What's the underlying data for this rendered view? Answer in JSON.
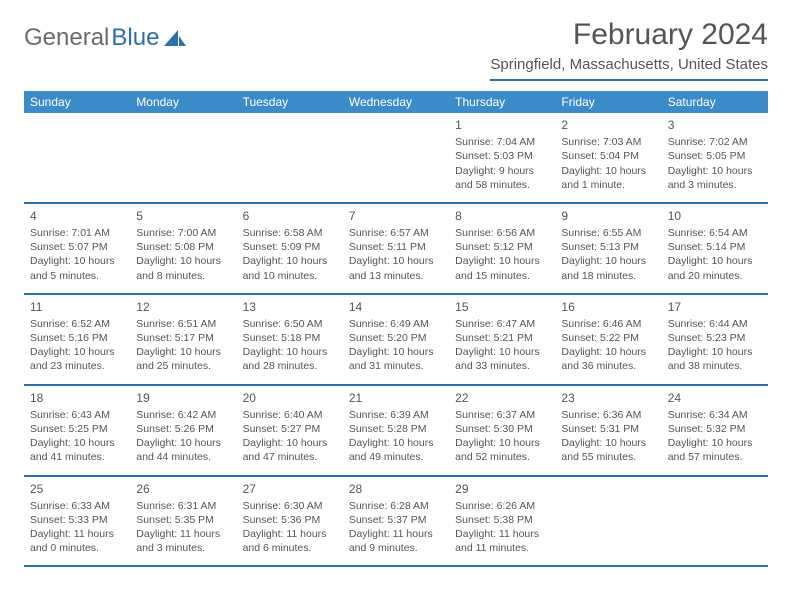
{
  "brand": {
    "part1": "General",
    "part2": "Blue"
  },
  "title": "February 2024",
  "location": "Springfield, Massachusetts, United States",
  "colors": {
    "header_bar": "#3b8bc9",
    "rule": "#2f6fa8",
    "text": "#555555",
    "logo_gray": "#6b6b6b"
  },
  "weekdays": [
    "Sunday",
    "Monday",
    "Tuesday",
    "Wednesday",
    "Thursday",
    "Friday",
    "Saturday"
  ],
  "weeks": [
    [
      null,
      null,
      null,
      null,
      {
        "n": "1",
        "sr": "Sunrise: 7:04 AM",
        "ss": "Sunset: 5:03 PM",
        "dl": "Daylight: 9 hours and 58 minutes."
      },
      {
        "n": "2",
        "sr": "Sunrise: 7:03 AM",
        "ss": "Sunset: 5:04 PM",
        "dl": "Daylight: 10 hours and 1 minute."
      },
      {
        "n": "3",
        "sr": "Sunrise: 7:02 AM",
        "ss": "Sunset: 5:05 PM",
        "dl": "Daylight: 10 hours and 3 minutes."
      }
    ],
    [
      {
        "n": "4",
        "sr": "Sunrise: 7:01 AM",
        "ss": "Sunset: 5:07 PM",
        "dl": "Daylight: 10 hours and 5 minutes."
      },
      {
        "n": "5",
        "sr": "Sunrise: 7:00 AM",
        "ss": "Sunset: 5:08 PM",
        "dl": "Daylight: 10 hours and 8 minutes."
      },
      {
        "n": "6",
        "sr": "Sunrise: 6:58 AM",
        "ss": "Sunset: 5:09 PM",
        "dl": "Daylight: 10 hours and 10 minutes."
      },
      {
        "n": "7",
        "sr": "Sunrise: 6:57 AM",
        "ss": "Sunset: 5:11 PM",
        "dl": "Daylight: 10 hours and 13 minutes."
      },
      {
        "n": "8",
        "sr": "Sunrise: 6:56 AM",
        "ss": "Sunset: 5:12 PM",
        "dl": "Daylight: 10 hours and 15 minutes."
      },
      {
        "n": "9",
        "sr": "Sunrise: 6:55 AM",
        "ss": "Sunset: 5:13 PM",
        "dl": "Daylight: 10 hours and 18 minutes."
      },
      {
        "n": "10",
        "sr": "Sunrise: 6:54 AM",
        "ss": "Sunset: 5:14 PM",
        "dl": "Daylight: 10 hours and 20 minutes."
      }
    ],
    [
      {
        "n": "11",
        "sr": "Sunrise: 6:52 AM",
        "ss": "Sunset: 5:16 PM",
        "dl": "Daylight: 10 hours and 23 minutes."
      },
      {
        "n": "12",
        "sr": "Sunrise: 6:51 AM",
        "ss": "Sunset: 5:17 PM",
        "dl": "Daylight: 10 hours and 25 minutes."
      },
      {
        "n": "13",
        "sr": "Sunrise: 6:50 AM",
        "ss": "Sunset: 5:18 PM",
        "dl": "Daylight: 10 hours and 28 minutes."
      },
      {
        "n": "14",
        "sr": "Sunrise: 6:49 AM",
        "ss": "Sunset: 5:20 PM",
        "dl": "Daylight: 10 hours and 31 minutes."
      },
      {
        "n": "15",
        "sr": "Sunrise: 6:47 AM",
        "ss": "Sunset: 5:21 PM",
        "dl": "Daylight: 10 hours and 33 minutes."
      },
      {
        "n": "16",
        "sr": "Sunrise: 6:46 AM",
        "ss": "Sunset: 5:22 PM",
        "dl": "Daylight: 10 hours and 36 minutes."
      },
      {
        "n": "17",
        "sr": "Sunrise: 6:44 AM",
        "ss": "Sunset: 5:23 PM",
        "dl": "Daylight: 10 hours and 38 minutes."
      }
    ],
    [
      {
        "n": "18",
        "sr": "Sunrise: 6:43 AM",
        "ss": "Sunset: 5:25 PM",
        "dl": "Daylight: 10 hours and 41 minutes."
      },
      {
        "n": "19",
        "sr": "Sunrise: 6:42 AM",
        "ss": "Sunset: 5:26 PM",
        "dl": "Daylight: 10 hours and 44 minutes."
      },
      {
        "n": "20",
        "sr": "Sunrise: 6:40 AM",
        "ss": "Sunset: 5:27 PM",
        "dl": "Daylight: 10 hours and 47 minutes."
      },
      {
        "n": "21",
        "sr": "Sunrise: 6:39 AM",
        "ss": "Sunset: 5:28 PM",
        "dl": "Daylight: 10 hours and 49 minutes."
      },
      {
        "n": "22",
        "sr": "Sunrise: 6:37 AM",
        "ss": "Sunset: 5:30 PM",
        "dl": "Daylight: 10 hours and 52 minutes."
      },
      {
        "n": "23",
        "sr": "Sunrise: 6:36 AM",
        "ss": "Sunset: 5:31 PM",
        "dl": "Daylight: 10 hours and 55 minutes."
      },
      {
        "n": "24",
        "sr": "Sunrise: 6:34 AM",
        "ss": "Sunset: 5:32 PM",
        "dl": "Daylight: 10 hours and 57 minutes."
      }
    ],
    [
      {
        "n": "25",
        "sr": "Sunrise: 6:33 AM",
        "ss": "Sunset: 5:33 PM",
        "dl": "Daylight: 11 hours and 0 minutes."
      },
      {
        "n": "26",
        "sr": "Sunrise: 6:31 AM",
        "ss": "Sunset: 5:35 PM",
        "dl": "Daylight: 11 hours and 3 minutes."
      },
      {
        "n": "27",
        "sr": "Sunrise: 6:30 AM",
        "ss": "Sunset: 5:36 PM",
        "dl": "Daylight: 11 hours and 6 minutes."
      },
      {
        "n": "28",
        "sr": "Sunrise: 6:28 AM",
        "ss": "Sunset: 5:37 PM",
        "dl": "Daylight: 11 hours and 9 minutes."
      },
      {
        "n": "29",
        "sr": "Sunrise: 6:26 AM",
        "ss": "Sunset: 5:38 PM",
        "dl": "Daylight: 11 hours and 11 minutes."
      },
      null,
      null
    ]
  ]
}
